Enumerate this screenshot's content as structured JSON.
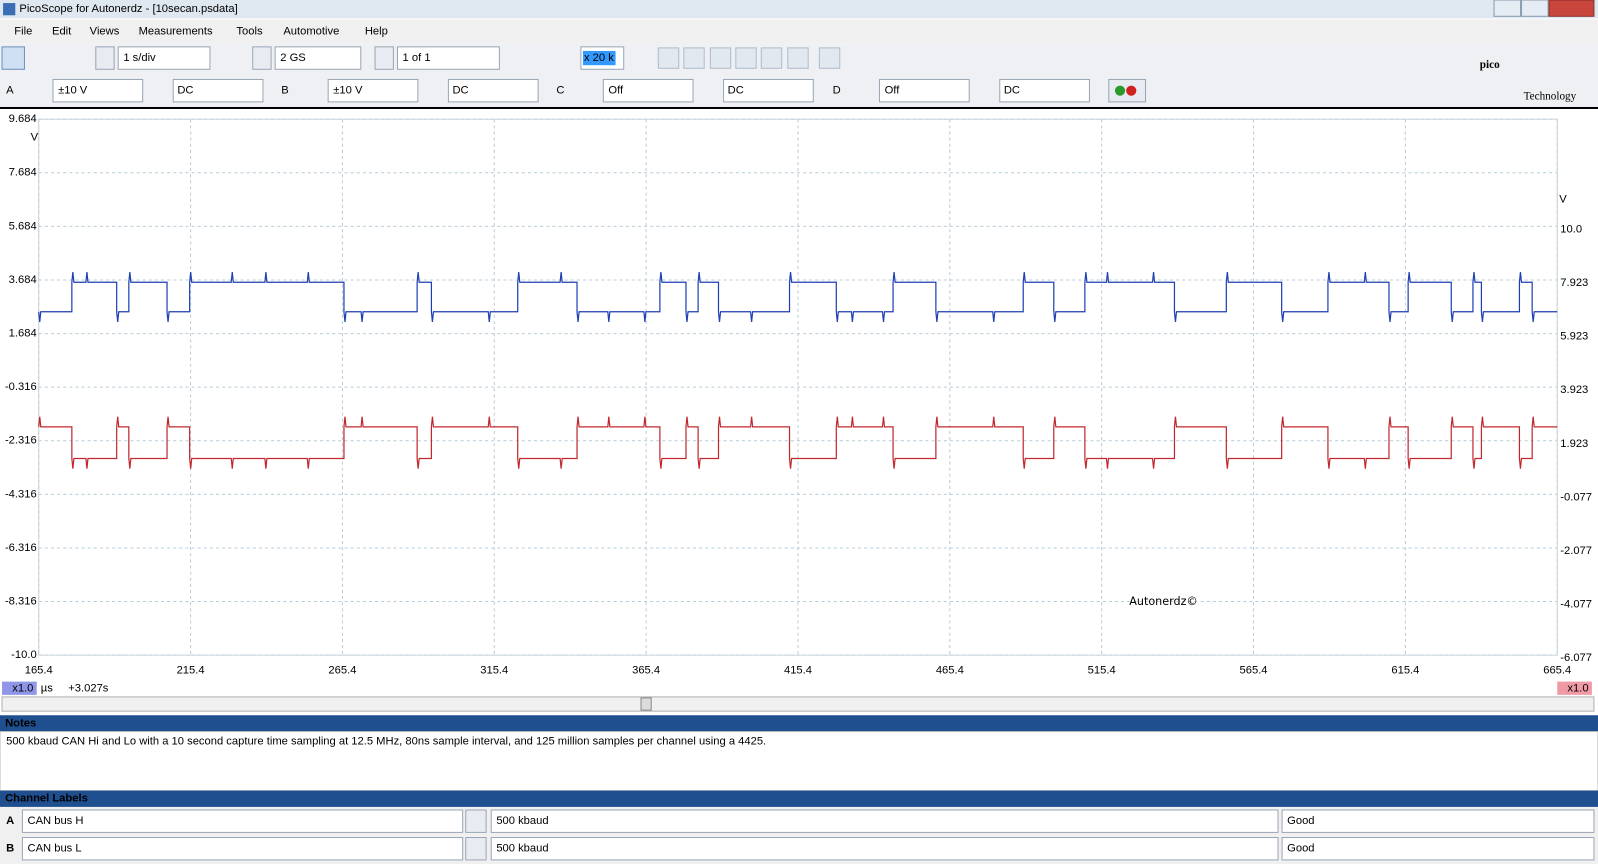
{
  "window": {
    "title": "PicoScope for Autonerdz - [10secan.psdata]"
  },
  "menu": [
    "File",
    "Edit",
    "Views",
    "Measurements",
    "Tools",
    "Automotive",
    "Help"
  ],
  "toolbar": {
    "timebase": "1 s/div",
    "samples": "2 GS",
    "buffer": "1 of 1",
    "zoom": "x 20 k"
  },
  "channels": [
    {
      "letter": "A",
      "range": "±10 V",
      "coupling": "DC"
    },
    {
      "letter": "B",
      "range": "±10 V",
      "coupling": "DC"
    },
    {
      "letter": "C",
      "range": "Off",
      "coupling": "DC"
    },
    {
      "letter": "D",
      "range": "Off",
      "coupling": "DC"
    }
  ],
  "logo": {
    "name": "pico",
    "sub": "Technology"
  },
  "scope": {
    "left_unit": "V",
    "left_ticks": [
      "9.684",
      "7.684",
      "5.684",
      "3.684",
      "1.684",
      "-0.316",
      "-2.316",
      "-4.316",
      "-6.316",
      "-8.316",
      "-10.0"
    ],
    "right_unit": "V",
    "right_ticks": [
      "10.0",
      "7.923",
      "5.923",
      "3.923",
      "1.923",
      "-0.077",
      "-2.077",
      "-4.077",
      "-6.077"
    ],
    "x_ticks": [
      "165.4",
      "215.4",
      "265.4",
      "315.4",
      "365.4",
      "415.4",
      "465.4",
      "515.4",
      "565.4",
      "615.4",
      "665.4"
    ],
    "left_scale": "x1.0",
    "right_scale": "x1.0",
    "x_unit": "µs",
    "offset": "+3.027s",
    "watermark": "Autonerdz©"
  },
  "notes": {
    "title": "Notes",
    "text": "500 kbaud CAN Hi and Lo with a 10 second capture time sampling at 12.5 MHz, 80ns sample interval, and 125 million samples per channel using a 4425."
  },
  "channel_labels": {
    "title": "Channel Labels",
    "rows": [
      [
        "A",
        "CAN bus H",
        "500 kbaud",
        "Good"
      ],
      [
        "B",
        "CAN bus L",
        "500 kbaud",
        "Good"
      ]
    ]
  }
}
